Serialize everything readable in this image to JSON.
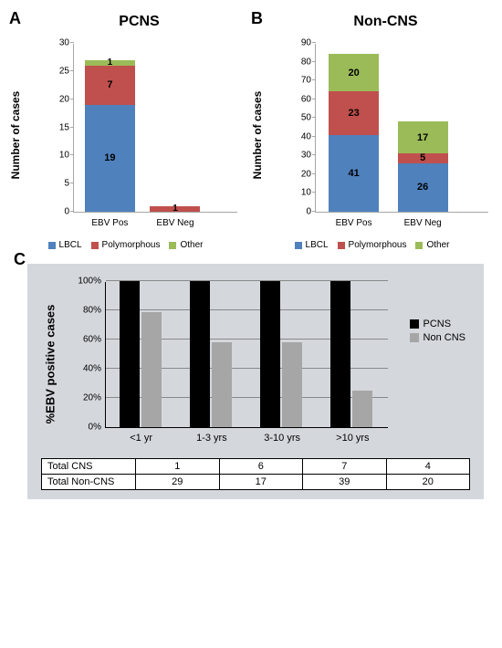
{
  "colors": {
    "lbcl": "#4f81bd",
    "polymorphous": "#c0504d",
    "other": "#9bbb59",
    "pcns_bar": "#000000",
    "noncns_bar": "#a6a6a6",
    "panelC_bg": "#d4d8dd"
  },
  "panelA": {
    "label": "A",
    "title": "PCNS",
    "ylabel": "Number of cases",
    "ymax": 30,
    "ytick_step": 5,
    "bars": [
      {
        "x": "EBV Pos",
        "segments": [
          {
            "series": "LBCL",
            "value": 19,
            "label": "19"
          },
          {
            "series": "Polymorphous",
            "value": 7,
            "label": "7"
          },
          {
            "series": "Other",
            "value": 1,
            "label": "1"
          }
        ]
      },
      {
        "x": "EBV Neg",
        "segments": [
          {
            "series": "Polymorphous",
            "value": 1,
            "label": "1"
          }
        ]
      }
    ]
  },
  "panelB": {
    "label": "B",
    "title": "Non-CNS",
    "ylabel": "Number of cases",
    "ymax": 90,
    "ytick_step": 10,
    "bars": [
      {
        "x": "EBV Pos",
        "segments": [
          {
            "series": "LBCL",
            "value": 41,
            "label": "41"
          },
          {
            "series": "Polymorphous",
            "value": 23,
            "label": "23"
          },
          {
            "series": "Other",
            "value": 20,
            "label": "20"
          }
        ]
      },
      {
        "x": "EBV Neg",
        "segments": [
          {
            "series": "LBCL",
            "value": 26,
            "label": "26"
          },
          {
            "series": "Polymorphous",
            "value": 5,
            "label": "5"
          },
          {
            "series": "Other",
            "value": 17,
            "label": "17"
          }
        ]
      }
    ]
  },
  "legendAB": [
    {
      "label": "LBCL",
      "color_key": "lbcl"
    },
    {
      "label": "Polymorphous",
      "color_key": "polymorphous"
    },
    {
      "label": "Other",
      "color_key": "other"
    }
  ],
  "panelC": {
    "label": "C",
    "ylabel": "%EBV positive cases",
    "ymax": 100,
    "ytick_step": 20,
    "categories": [
      "<1 yr",
      "1-3 yrs",
      "3-10 yrs",
      ">10 yrs"
    ],
    "series": [
      {
        "name": "PCNS",
        "color_key": "pcns_bar",
        "values": [
          100,
          100,
          100,
          100
        ]
      },
      {
        "name": "Non CNS",
        "color_key": "noncns_bar",
        "values": [
          79,
          58,
          58,
          25
        ]
      }
    ],
    "table": {
      "rows": [
        {
          "label": "Total CNS",
          "values": [
            1,
            6,
            7,
            4
          ]
        },
        {
          "label": "Total Non-CNS",
          "values": [
            29,
            17,
            39,
            20
          ]
        }
      ]
    }
  }
}
